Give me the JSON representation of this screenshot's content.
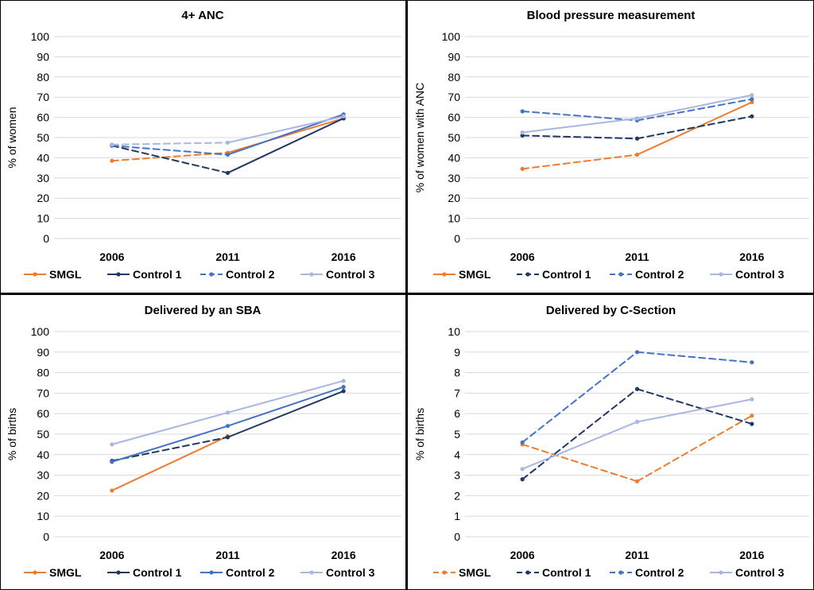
{
  "colors": {
    "smgl": "#ED7D31",
    "control1": "#203864",
    "control2": "#4472C4",
    "control3": "#A9B7E0",
    "grid": "#D9D9D9",
    "text": "#000000"
  },
  "chart_data": [
    {
      "type": "line",
      "title": "4+ ANC",
      "ylabel": "% of women",
      "xlabel": "",
      "categories": [
        "2006",
        "2011",
        "2016"
      ],
      "ylim": [
        0,
        100
      ],
      "yticks": [
        "0",
        "10",
        "20",
        "30",
        "40",
        "50",
        "60",
        "70",
        "80",
        "90",
        "100"
      ],
      "grid": "horizontal",
      "legend_position": "bottom",
      "series": [
        {
          "name": "SMGL",
          "color_key": "smgl",
          "values": [
            38.5,
            42.5,
            59.5
          ],
          "dashes": [
            "dash",
            "solid"
          ],
          "legend_style": "solid"
        },
        {
          "name": "Control 1",
          "color_key": "control1",
          "values": [
            46,
            32.5,
            59.5
          ],
          "dashes": [
            "dash",
            "solid"
          ],
          "legend_style": "solid"
        },
        {
          "name": "Control 2",
          "color_key": "control2",
          "values": [
            46,
            41.5,
            61.5
          ],
          "dashes": [
            "dash",
            "solid"
          ],
          "legend_style": "dash"
        },
        {
          "name": "Control 3",
          "color_key": "control3",
          "values": [
            46.5,
            47.5,
            60.5
          ],
          "dashes": [
            "dash",
            "solid"
          ],
          "legend_style": "solid"
        }
      ]
    },
    {
      "type": "line",
      "title": "Blood pressure measurement",
      "ylabel": "% of women with ANC",
      "xlabel": "",
      "categories": [
        "2006",
        "2011",
        "2016"
      ],
      "ylim": [
        0,
        100
      ],
      "yticks": [
        "0",
        "10",
        "20",
        "30",
        "40",
        "50",
        "60",
        "70",
        "80",
        "90",
        "100"
      ],
      "grid": "horizontal",
      "legend_position": "bottom",
      "series": [
        {
          "name": "SMGL",
          "color_key": "smgl",
          "values": [
            34.5,
            41.5,
            67.5
          ],
          "dashes": [
            "dash",
            "solid"
          ],
          "legend_style": "solid"
        },
        {
          "name": "Control 1",
          "color_key": "control1",
          "values": [
            51,
            49.5,
            60.5
          ],
          "dashes": [
            "dash",
            "dash"
          ],
          "legend_style": "dash"
        },
        {
          "name": "Control 2",
          "color_key": "control2",
          "values": [
            63,
            58.5,
            69
          ],
          "dashes": [
            "dash",
            "dash"
          ],
          "legend_style": "dash"
        },
        {
          "name": "Control 3",
          "color_key": "control3",
          "values": [
            52.5,
            59.5,
            71
          ],
          "dashes": [
            "solid",
            "solid"
          ],
          "legend_style": "solid"
        }
      ]
    },
    {
      "type": "line",
      "title": "Delivered by an SBA",
      "ylabel": "% of births",
      "xlabel": "",
      "categories": [
        "2006",
        "2011",
        "2016"
      ],
      "ylim": [
        0,
        100
      ],
      "yticks": [
        "0",
        "10",
        "20",
        "30",
        "40",
        "50",
        "60",
        "70",
        "80",
        "90",
        "100"
      ],
      "grid": "horizontal",
      "legend_position": "bottom",
      "series": [
        {
          "name": "SMGL",
          "color_key": "smgl",
          "values": [
            22.5,
            49,
            null
          ],
          "dashes": [
            "solid"
          ],
          "legend_style": "solid"
        },
        {
          "name": "Control 1",
          "color_key": "control1",
          "values": [
            37,
            48.5,
            71
          ],
          "dashes": [
            "dash",
            "solid"
          ],
          "legend_style": "solid"
        },
        {
          "name": "Control 2",
          "color_key": "control2",
          "values": [
            36.5,
            54,
            73
          ],
          "dashes": [
            "solid",
            "solid"
          ],
          "legend_style": "solid"
        },
        {
          "name": "Control 3",
          "color_key": "control3",
          "values": [
            45,
            60.5,
            76
          ],
          "dashes": [
            "solid",
            "solid"
          ],
          "legend_style": "solid"
        }
      ]
    },
    {
      "type": "line",
      "title": "Delivered by C-Section",
      "ylabel": "% of births",
      "xlabel": "",
      "categories": [
        "2006",
        "2011",
        "2016"
      ],
      "ylim": [
        0,
        10
      ],
      "yticks": [
        "0",
        "1",
        "2",
        "3",
        "4",
        "5",
        "6",
        "7",
        "8",
        "9",
        "10"
      ],
      "grid": "horizontal",
      "legend_position": "bottom",
      "series": [
        {
          "name": "SMGL",
          "color_key": "smgl",
          "values": [
            4.5,
            2.7,
            5.9
          ],
          "dashes": [
            "dash",
            "dash"
          ],
          "legend_style": "dash"
        },
        {
          "name": "Control 1",
          "color_key": "control1",
          "values": [
            2.8,
            7.2,
            5.5
          ],
          "dashes": [
            "dash",
            "dash"
          ],
          "legend_style": "dash"
        },
        {
          "name": "Control 2",
          "color_key": "control2",
          "values": [
            4.6,
            9.0,
            8.5
          ],
          "dashes": [
            "dash",
            "dash"
          ],
          "legend_style": "dash"
        },
        {
          "name": "Control 3",
          "color_key": "control3",
          "values": [
            3.3,
            5.6,
            6.7
          ],
          "dashes": [
            "solid",
            "solid"
          ],
          "legend_style": "solid"
        }
      ]
    }
  ]
}
